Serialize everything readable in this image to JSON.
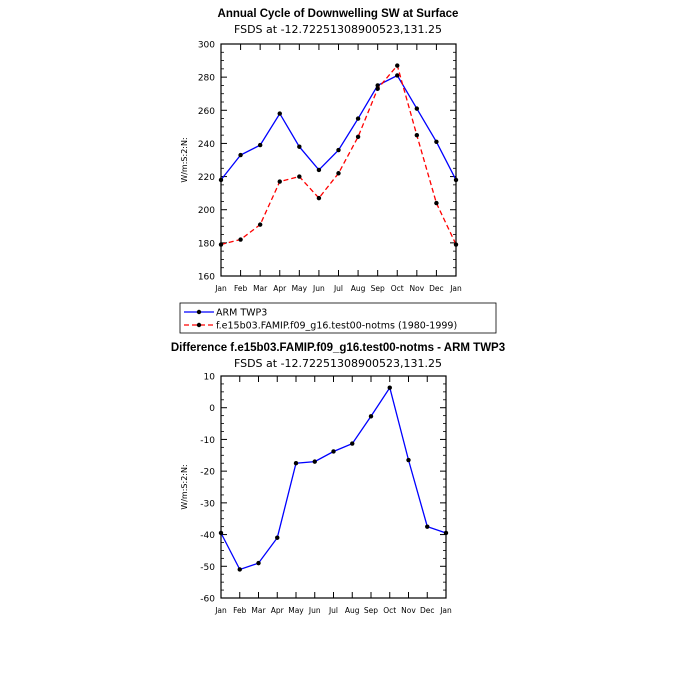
{
  "chart_data": [
    {
      "type": "line",
      "title": "Annual Cycle of Downwelling SW at Surface",
      "subtitle": "FSDS at -12.72251308900523,131.25",
      "ylabel": "W/m:S:2:N:",
      "xlabel": "",
      "categories": [
        "Jan",
        "Feb",
        "Mar",
        "Apr",
        "May",
        "Jun",
        "Jul",
        "Aug",
        "Sep",
        "Oct",
        "Nov",
        "Dec",
        "Jan"
      ],
      "ylim": [
        160,
        300
      ],
      "yticks": [
        160,
        180,
        200,
        220,
        240,
        260,
        280,
        300
      ],
      "series": [
        {
          "name": "ARM TWP3",
          "color": "#0000ff",
          "dash": "solid",
          "values": [
            218,
            233,
            239,
            258,
            238,
            224,
            236,
            255,
            275,
            281,
            261,
            241,
            218
          ]
        },
        {
          "name": "f.e15b03.FAMIP.f09_g16.test00-notms (1980-1999)",
          "color": "#ff0000",
          "dash": "dashed",
          "values": [
            179,
            182,
            191,
            217,
            220,
            207,
            222,
            244,
            273,
            287,
            245,
            204,
            179
          ]
        }
      ],
      "legend": "bottom-left"
    },
    {
      "type": "line",
      "title": "Difference f.e15b03.FAMIP.f09_g16.test00-notms - ARM TWP3",
      "subtitle": "FSDS at -12.72251308900523,131.25",
      "ylabel": "W/m:S:2:N:",
      "xlabel": "",
      "categories": [
        "Jan",
        "Feb",
        "Mar",
        "Apr",
        "May",
        "Jun",
        "Jul",
        "Aug",
        "Sep",
        "Oct",
        "Nov",
        "Dec",
        "Jan"
      ],
      "ylim": [
        -60,
        10
      ],
      "yticks": [
        -60,
        -50,
        -40,
        -30,
        -20,
        -10,
        0,
        10
      ],
      "series": [
        {
          "name": "Difference",
          "color": "#0000ff",
          "dash": "solid",
          "values": [
            -39.5,
            -51,
            -49,
            -41,
            -17.5,
            -17,
            -13.8,
            -11.3,
            -2.7,
            6.3,
            -16.5,
            -37.5,
            -39.5
          ]
        }
      ]
    }
  ]
}
